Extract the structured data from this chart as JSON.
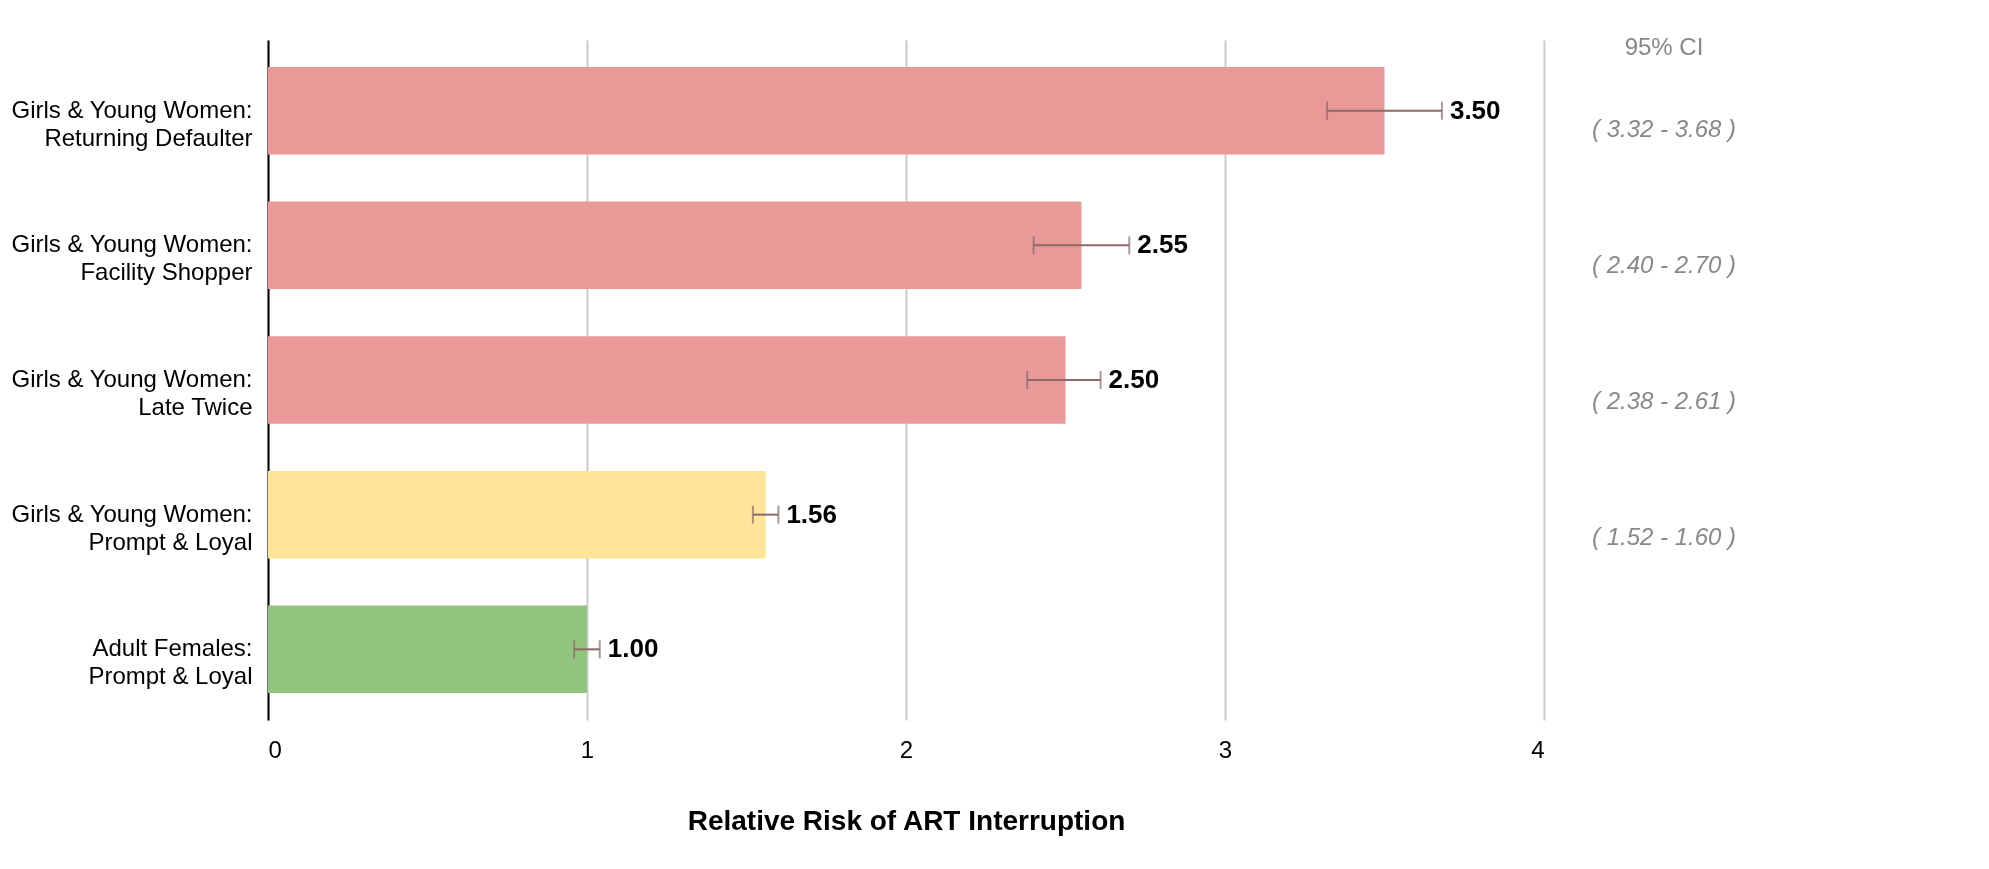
{
  "chart_data": {
    "type": "bar",
    "orientation": "horizontal",
    "xlabel": "Relative Risk of ART Interruption",
    "categories": [
      "Girls & Young Women:\nReturning Defaulter",
      "Girls & Young Women:\nFacility Shopper",
      "Girls & Young Women:\nLate Twice",
      "Girls & Young Women:\nPrompt & Loyal",
      "Adult Females:\nPrompt & Loyal"
    ],
    "values": [
      3.5,
      2.55,
      2.5,
      1.56,
      1.0
    ],
    "colors": [
      "#ea9999",
      "#ea9999",
      "#ea9999",
      "#ffe599",
      "#93c47d"
    ],
    "errors": [
      [
        3.32,
        3.68
      ],
      [
        2.4,
        2.7
      ],
      [
        2.38,
        2.61
      ],
      [
        1.52,
        1.6
      ],
      [
        0.96,
        1.04
      ]
    ],
    "xlim": [
      0,
      4
    ],
    "xticks": [
      0,
      1,
      2,
      3,
      4
    ],
    "grid": "x",
    "value_labels": [
      "3.50",
      "2.55",
      "2.50",
      "1.56",
      "1.00"
    ],
    "legend": false,
    "annotations": [
      "95% CI",
      "( 3.32 - 3.68 )",
      "( 2.40 - 2.70 )",
      "( 2.38 - 2.61 )",
      "( 1.52 - 1.60 )"
    ]
  }
}
